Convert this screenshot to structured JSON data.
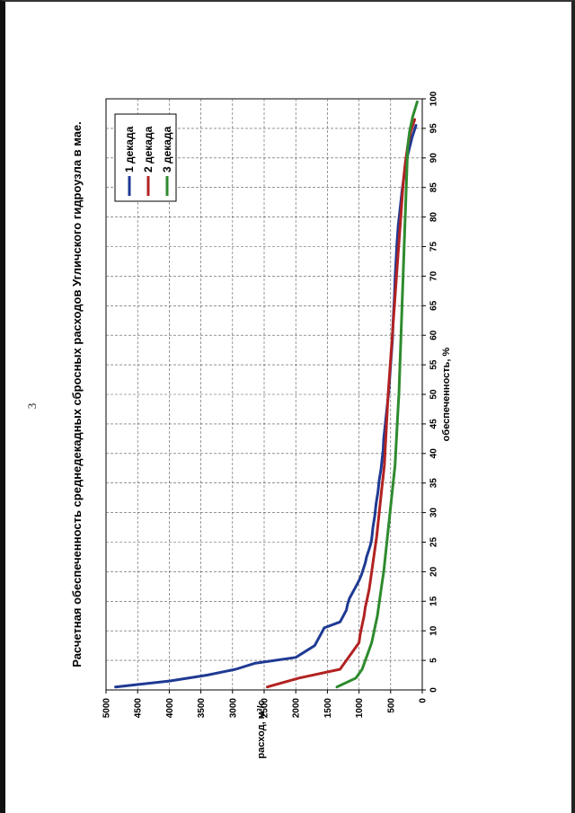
{
  "page": {
    "number": "3"
  },
  "chart_data": {
    "type": "line",
    "title": "Расчетная обеспеченность среднедекадных сбросных расходов Угличского гидроузла в мае.",
    "xlabel": "обеспеченность, %",
    "ylabel": "расход, м³/с",
    "xlim": [
      0,
      100
    ],
    "ylim": [
      0,
      5000
    ],
    "x_ticks": [
      "0",
      "5",
      "10",
      "15",
      "20",
      "25",
      "30",
      "35",
      "40",
      "45",
      "50",
      "55",
      "60",
      "65",
      "70",
      "75",
      "80",
      "85",
      "90",
      "95",
      "100"
    ],
    "y_ticks": [
      "0",
      "500",
      "1000",
      "1500",
      "2000",
      "2500",
      "3000",
      "3500",
      "4000",
      "4500",
      "5000"
    ],
    "grid": true,
    "legend_position": "top-right",
    "orientation": "rotated-90-ccw",
    "series": [
      {
        "name": "1 декада",
        "color": "#1f3a93",
        "x": [
          0.5,
          1.5,
          2.5,
          3.5,
          4.5,
          5.5,
          6.5,
          7.5,
          8.5,
          9.5,
          10.5,
          11.5,
          12.5,
          13.5,
          14.5,
          15.5,
          16.5,
          17.5,
          18.5,
          19.5,
          20.5,
          21.5,
          22.5,
          23.5,
          24.5,
          25.5,
          27.5,
          29.5,
          31.5,
          33.5,
          35.5,
          37.5,
          39.5,
          40.5,
          42.5,
          44.5,
          46.5,
          48.5,
          50.5,
          53.5,
          56.5,
          59.5,
          62.5,
          64.5,
          66.5,
          69.5,
          71.5,
          73.5,
          75.5,
          78.5,
          81.5,
          84.5,
          87.5,
          90.5,
          93.5,
          95.5
        ],
        "y": [
          4850,
          4000,
          3400,
          2950,
          2650,
          2000,
          1850,
          1700,
          1650,
          1600,
          1550,
          1300,
          1250,
          1200,
          1180,
          1150,
          1100,
          1050,
          1000,
          960,
          930,
          900,
          880,
          850,
          820,
          800,
          780,
          750,
          730,
          700,
          680,
          650,
          630,
          620,
          610,
          590,
          570,
          550,
          530,
          510,
          490,
          470,
          460,
          450,
          440,
          430,
          420,
          410,
          400,
          380,
          350,
          320,
          280,
          230,
          160,
          100
        ]
      },
      {
        "name": "2 декада",
        "color": "#b22222",
        "x": [
          0.5,
          2,
          3.5,
          5,
          6.5,
          8,
          9.5,
          11,
          12.5,
          14,
          15.5,
          17,
          18.5,
          20,
          21.5,
          23,
          24.5,
          26,
          28,
          30,
          32,
          34,
          36,
          38,
          40,
          42,
          44,
          46,
          48,
          50,
          53,
          56,
          59,
          62,
          65,
          68,
          71,
          74,
          77,
          80,
          83,
          86,
          89,
          92,
          94.5,
          96.5
        ],
        "y": [
          2450,
          1950,
          1300,
          1200,
          1100,
          1000,
          980,
          950,
          920,
          900,
          870,
          840,
          820,
          800,
          780,
          760,
          740,
          720,
          700,
          680,
          660,
          640,
          620,
          600,
          590,
          580,
          570,
          560,
          550,
          540,
          520,
          500,
          480,
          460,
          440,
          420,
          400,
          380,
          360,
          340,
          320,
          300,
          270,
          230,
          180,
          120
        ]
      },
      {
        "name": "3 декада",
        "color": "#2e8b2e",
        "x": [
          0.5,
          2,
          3.5,
          5,
          6.5,
          8,
          9.5,
          11,
          12.5,
          14,
          15.5,
          17,
          18.5,
          20,
          22,
          24,
          26,
          28,
          30,
          32,
          34,
          36,
          38,
          40,
          42,
          44,
          46,
          48,
          50,
          53,
          56,
          59,
          62,
          65,
          68,
          71,
          74,
          77,
          80,
          83,
          86,
          89,
          92,
          94.5,
          97,
          99.5
        ],
        "y": [
          1350,
          1050,
          950,
          900,
          850,
          800,
          770,
          740,
          710,
          690,
          670,
          650,
          630,
          610,
          590,
          570,
          550,
          530,
          510,
          490,
          470,
          450,
          430,
          420,
          410,
          400,
          390,
          380,
          370,
          360,
          350,
          340,
          330,
          320,
          310,
          300,
          290,
          280,
          270,
          260,
          250,
          240,
          230,
          200,
          150,
          80
        ]
      }
    ]
  }
}
